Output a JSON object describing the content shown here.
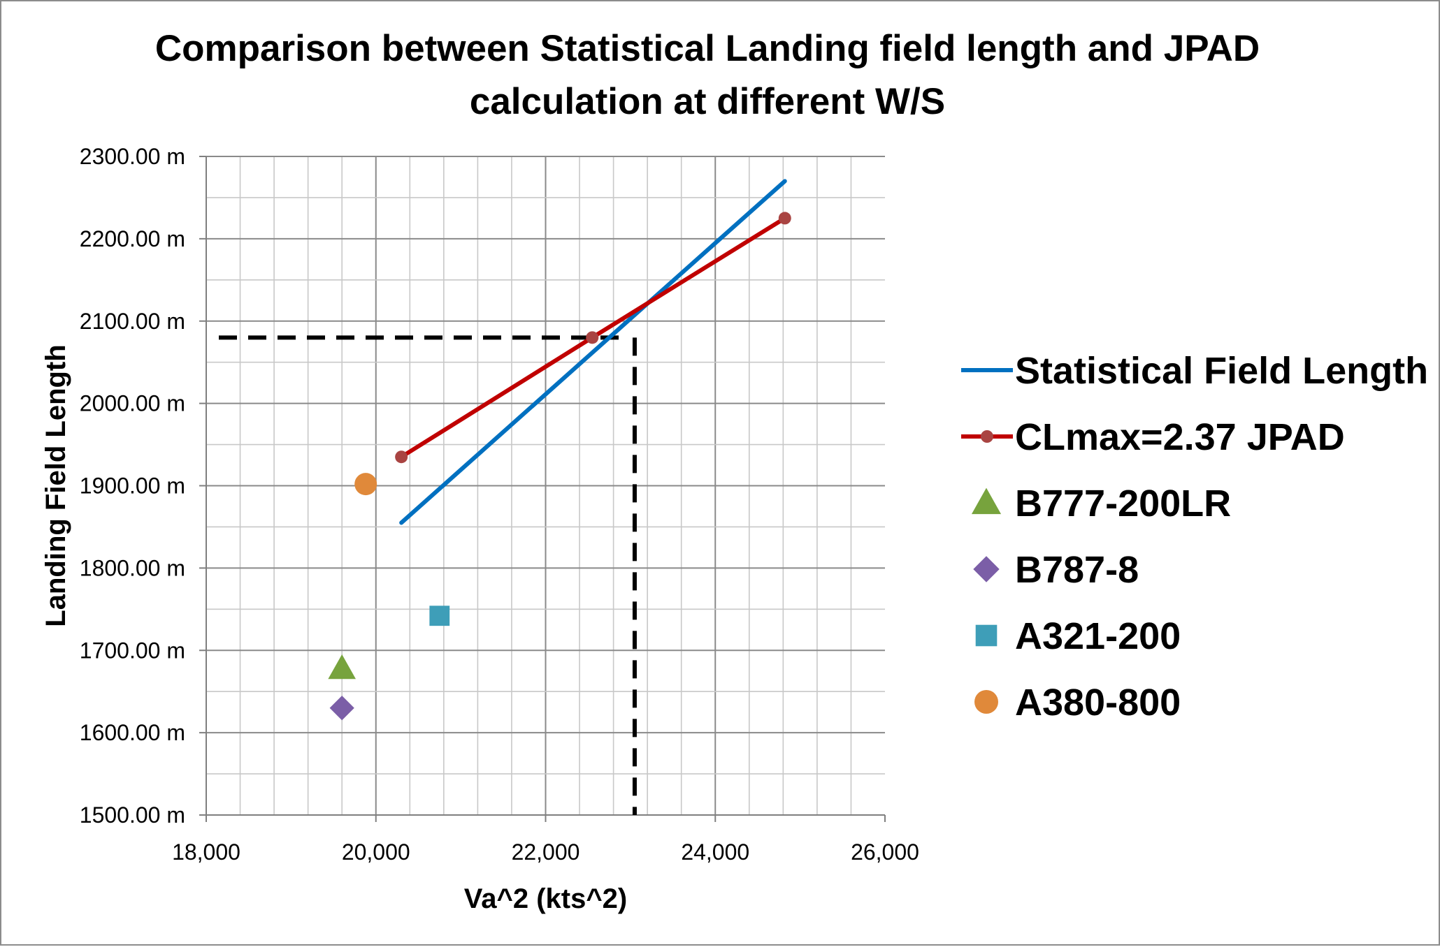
{
  "chart_data": {
    "type": "line",
    "title_lines": [
      "Comparison between Statistical Landing field length and JPAD",
      "calculation at different W/S"
    ],
    "xlabel": "Va^2 (kts^2)",
    "ylabel": "Landing Field Length",
    "xlim": [
      18000,
      26000
    ],
    "ylim": [
      1500,
      2300
    ],
    "x_ticks": [
      18000,
      20000,
      22000,
      24000,
      26000
    ],
    "x_tick_labels": [
      "18,000",
      "20,000",
      "22,000",
      "24,000",
      "26,000"
    ],
    "y_ticks": [
      1500,
      1600,
      1700,
      1800,
      1900,
      2000,
      2100,
      2200,
      2300
    ],
    "y_tick_labels": [
      "1500.00 m",
      "1600.00 m",
      "1700.00 m",
      "1800.00 m",
      "1900.00 m",
      "2000.00 m",
      "2100.00 m",
      "2200.00 m",
      "2300.00 m"
    ],
    "grid": "major and minor",
    "legend_position": "right",
    "series": [
      {
        "name": "Statistical Field Length",
        "kind": "line",
        "color": "#0070C0",
        "x": [
          20300,
          24820
        ],
        "y": [
          1855,
          2270
        ]
      },
      {
        "name": "CLmax=2.37 JPAD",
        "kind": "line-markers",
        "color": "#C00000",
        "marker_color": "#A94442",
        "x": [
          20300,
          22550,
          24820
        ],
        "y": [
          1935,
          2080,
          2225
        ]
      },
      {
        "name": "B777-200LR",
        "kind": "point",
        "marker": "triangle",
        "color": "#77A33D",
        "x": [
          19600
        ],
        "y": [
          1678
        ]
      },
      {
        "name": "B787-8",
        "kind": "point",
        "marker": "diamond",
        "color": "#7B5EA7",
        "x": [
          19600
        ],
        "y": [
          1630
        ]
      },
      {
        "name": "A321-200",
        "kind": "point",
        "marker": "square",
        "color": "#3E9EB8",
        "x": [
          20750
        ],
        "y": [
          1742
        ]
      },
      {
        "name": "A380-800",
        "kind": "point",
        "marker": "circle",
        "color": "#E0893A",
        "x": [
          19880
        ],
        "y": [
          1902
        ]
      }
    ],
    "reference_lines": {
      "color": "#000000",
      "y": 2080,
      "x": 23050
    }
  }
}
